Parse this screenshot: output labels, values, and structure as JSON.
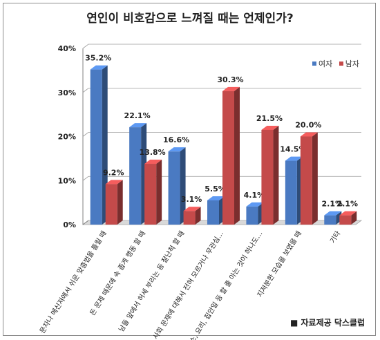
{
  "chart_data": {
    "type": "bar",
    "title": "연인이 비호감으로 느껴질 때는 언제인가?",
    "categories": [
      "문자나 메신저에서 쉬운 맞춤법을 틀릴 때",
      "돈 문제 때문에 속 좁게 행동 할 때",
      "남들 앞에서 허세 부리는 등 잘난척 할 때",
      "정치, 사회 문제에 대해서 전혀 모르거나 무관심…",
      "청소, 요리, 집안일 등 할 줄 아는 것이 하나도…",
      "지저분한 모습을 보였을 때",
      "기타"
    ],
    "series": [
      {
        "name": "여자",
        "color": "#4a7ac2",
        "values": [
          35.2,
          22.1,
          16.6,
          5.5,
          4.1,
          14.5,
          2.1
        ],
        "labels": [
          "35.2%",
          "22.1%",
          "16.6%",
          "5.5%",
          "4.1%",
          "14.5%",
          "2.1%"
        ]
      },
      {
        "name": "남자",
        "color": "#c44a4a",
        "values": [
          9.2,
          13.8,
          3.1,
          30.3,
          21.5,
          20.0,
          2.1
        ],
        "labels": [
          "9.2%",
          "13.8%",
          "3.1%",
          "30.3%",
          "21.5%",
          "20.0%",
          "2.1%"
        ]
      }
    ],
    "ylim": [
      0,
      40
    ],
    "yticks": [
      0,
      10,
      20,
      30,
      40
    ],
    "ytick_labels": [
      "0%",
      "10%",
      "20%",
      "30%",
      "40%"
    ],
    "grid": true,
    "legend_position": "top-right"
  },
  "source_text": "■ 자료제공 닥스클럽"
}
